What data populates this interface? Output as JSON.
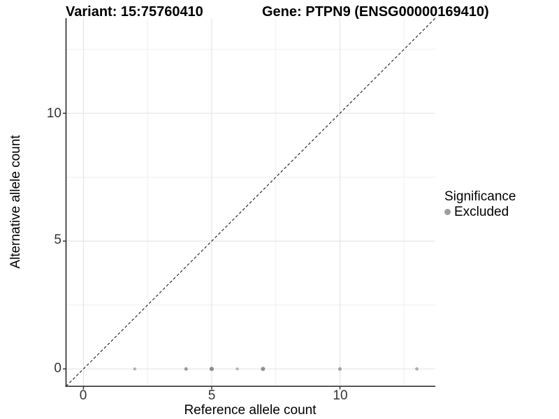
{
  "colors": {
    "background": "#ffffff",
    "grid_major": "#e4e4e4",
    "grid_minor": "#efefef",
    "axis": "#333333",
    "identity_line": "#1a1a1a",
    "tick_text": "#333333",
    "point": "#7f7f7f",
    "legend_point": "#9e9e9e"
  },
  "chart_data": {
    "type": "scatter",
    "title_left": "Variant: 15:75760410",
    "title_right": "Gene: PTPN9 (ENSG00000169410)",
    "xlabel": "Reference allele count",
    "ylabel": "Alternative allele count",
    "xlim": [
      -0.68,
      13.72
    ],
    "ylim": [
      -0.68,
      13.72
    ],
    "x_major_ticks": [
      0,
      5,
      10
    ],
    "y_major_ticks": [
      0,
      5,
      10
    ],
    "x_tick_labels": [
      "0",
      "5",
      "10"
    ],
    "y_tick_labels": [
      "0",
      "5",
      "10"
    ],
    "x_minor_gridlines": [
      2.5,
      7.5,
      12.5
    ],
    "y_minor_gridlines": [
      2.5,
      7.5,
      12.5
    ],
    "grid": true,
    "legend_position": "right",
    "identity_line": {
      "style": "dashed",
      "slope": 1,
      "intercept": 0
    },
    "series": [
      {
        "name": "Excluded",
        "color": "#7f7f7f",
        "points": [
          {
            "x": 2,
            "y": 0,
            "r": 2.2,
            "opacity": 0.58
          },
          {
            "x": 4,
            "y": 0,
            "r": 2.6,
            "opacity": 0.75
          },
          {
            "x": 5,
            "y": 0,
            "r": 3.1,
            "opacity": 0.88
          },
          {
            "x": 6,
            "y": 0,
            "r": 2.2,
            "opacity": 0.55
          },
          {
            "x": 7,
            "y": 0,
            "r": 3.0,
            "opacity": 0.85
          },
          {
            "x": 10,
            "y": 0,
            "r": 2.6,
            "opacity": 0.68
          },
          {
            "x": 13,
            "y": 0,
            "r": 2.4,
            "opacity": 0.6
          }
        ]
      }
    ],
    "legend": {
      "title": "Significance",
      "position": "right",
      "entries": [
        {
          "label": "Excluded",
          "color": "#9e9e9e"
        }
      ]
    }
  }
}
